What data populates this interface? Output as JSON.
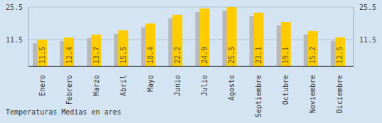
{
  "chart_data": {
    "type": "bar",
    "title": "Temperaturas Medias en ares",
    "categories": [
      "Enero",
      "Febrero",
      "Marzo",
      "Abril",
      "Mayo",
      "Junio",
      "Julio",
      "Agosto",
      "Septiembre",
      "Octubre",
      "Noviembre",
      "Diciembre"
    ],
    "values": [
      11.5,
      12.4,
      13.7,
      15.5,
      18.4,
      22.2,
      24.9,
      25.5,
      23.1,
      19.1,
      15.2,
      12.5
    ],
    "color": "#ffcc00",
    "ylim": [
      0,
      25.5
    ],
    "yticks": [
      11.5,
      25.5
    ],
    "grid": true,
    "data_labels": true
  }
}
